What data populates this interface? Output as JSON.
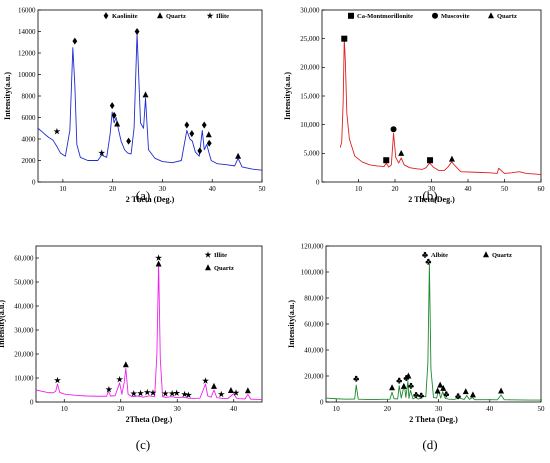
{
  "chart_data": [
    {
      "id": "a",
      "type": "line",
      "caption": "(a)",
      "xlabel": "2 Theta (Deg.)",
      "ylabel": "Intensity(a.u.)",
      "xlim": [
        5,
        50
      ],
      "ylim": [
        0,
        16000
      ],
      "xticks": [
        10,
        20,
        30,
        40,
        50
      ],
      "yticks": [
        0,
        2000,
        4000,
        6000,
        8000,
        10000,
        12000,
        14000,
        16000
      ],
      "ytick_labels": [
        "0",
        "2000",
        "4000",
        "6000",
        "8000",
        "10000",
        "12000",
        "14000",
        "16000"
      ],
      "line_color": "#1f2ccf",
      "legend": [
        {
          "symbol": "diamond",
          "label": "Kaolinite"
        },
        {
          "symbol": "triangle",
          "label": "Quartz"
        },
        {
          "symbol": "star",
          "label": "Illite"
        }
      ],
      "series": [
        {
          "x": [
            5,
            6,
            7,
            8,
            8.8,
            9.5,
            10.5,
            11.4,
            12,
            12.4,
            12.8,
            13.5,
            15,
            17,
            17.8,
            18.8,
            19.5,
            19.9,
            20.3,
            20.7,
            21.2,
            21.7,
            22.4,
            23,
            23.7,
            24.3,
            24.9,
            25.6,
            26.2,
            26.6,
            27.2,
            28.5,
            30,
            32,
            33.8,
            34.9,
            35.5,
            36,
            36.6,
            37.4,
            38,
            38.4,
            38.9,
            39.3,
            39.8,
            41,
            43,
            44.5,
            45.2,
            46,
            48,
            50
          ],
          "y": [
            5000,
            4600,
            4200,
            3900,
            3300,
            2700,
            2400,
            4800,
            12500,
            9000,
            3500,
            2300,
            2000,
            2000,
            2500,
            2300,
            4500,
            6500,
            5500,
            6000,
            4800,
            3800,
            3000,
            2700,
            2600,
            5000,
            13800,
            5500,
            5000,
            7800,
            3000,
            2200,
            1900,
            1800,
            2000,
            4800,
            4000,
            3800,
            2800,
            2400,
            4800,
            3000,
            3500,
            2800,
            2000,
            1700,
            1600,
            1500,
            2200,
            1400,
            1200,
            1100
          ]
        }
      ],
      "markers": [
        {
          "symbol": "star",
          "x": 8.8,
          "y": 4700
        },
        {
          "symbol": "diamond",
          "x": 12.4,
          "y": 13100
        },
        {
          "symbol": "star",
          "x": 17.8,
          "y": 2700
        },
        {
          "symbol": "diamond",
          "x": 19.9,
          "y": 7100
        },
        {
          "symbol": "diamond",
          "x": 20.3,
          "y": 6200
        },
        {
          "symbol": "triangle",
          "x": 20.9,
          "y": 5400
        },
        {
          "symbol": "diamond",
          "x": 23.2,
          "y": 3800
        },
        {
          "symbol": "diamond",
          "x": 24.9,
          "y": 14000
        },
        {
          "symbol": "triangle",
          "x": 26.6,
          "y": 8100
        },
        {
          "symbol": "diamond",
          "x": 34.9,
          "y": 5300
        },
        {
          "symbol": "diamond",
          "x": 35.9,
          "y": 4500
        },
        {
          "symbol": "diamond",
          "x": 37.5,
          "y": 2900
        },
        {
          "symbol": "diamond",
          "x": 38.4,
          "y": 5300
        },
        {
          "symbol": "triangle",
          "x": 39.3,
          "y": 4400
        },
        {
          "symbol": "diamond",
          "x": 39.4,
          "y": 3600
        },
        {
          "symbol": "triangle",
          "x": 45.2,
          "y": 2400
        }
      ]
    },
    {
      "id": "b",
      "type": "line",
      "caption": "(b)",
      "xlabel": "2 Theta(Deg.)",
      "ylabel": "Intensity(a.u.)",
      "xlim": [
        0,
        60
      ],
      "ylim": [
        0,
        30000
      ],
      "xticks": [
        10,
        20,
        30,
        40,
        50,
        60
      ],
      "yticks": [
        0,
        5000,
        10000,
        15000,
        20000,
        25000,
        30000
      ],
      "ytick_labels": [
        "0",
        "5,000",
        "10,000",
        "15,000",
        "20,000",
        "25,000",
        "30,000"
      ],
      "line_color": "#e02020",
      "legend": [
        {
          "symbol": "square",
          "label": "Ca-Montmorillonite"
        },
        {
          "symbol": "circle",
          "label": "Muscovite"
        },
        {
          "symbol": "triangle",
          "label": "Quartz"
        }
      ],
      "series": [
        {
          "x": [
            5,
            5.4,
            5.8,
            6.1,
            6.4,
            6.8,
            7.5,
            9,
            11,
            13,
            15,
            17,
            17.6,
            18.3,
            19,
            19.6,
            20.2,
            21,
            21.7,
            22.5,
            24,
            26,
            27.5,
            28.5,
            29.5,
            30.5,
            32,
            33.5,
            34.5,
            35.5,
            36.5,
            38,
            42,
            46,
            48,
            48.4,
            50,
            52,
            54,
            56,
            58,
            60
          ],
          "y": [
            6000,
            7000,
            14000,
            25000,
            21000,
            12000,
            7500,
            4500,
            3500,
            3000,
            2800,
            2700,
            3300,
            2600,
            3000,
            8500,
            4300,
            3300,
            4200,
            3000,
            2500,
            2300,
            2200,
            2500,
            3300,
            2600,
            2000,
            2000,
            2600,
            3500,
            2800,
            1800,
            1700,
            1600,
            1500,
            2400,
            1500,
            1600,
            1800,
            1500,
            1400,
            1300
          ]
        }
      ],
      "markers": [
        {
          "symbol": "square",
          "x": 6.1,
          "y": 25000
        },
        {
          "symbol": "square",
          "x": 17.6,
          "y": 3800
        },
        {
          "symbol": "circle",
          "x": 19.6,
          "y": 9200
        },
        {
          "symbol": "triangle",
          "x": 21.7,
          "y": 5000
        },
        {
          "symbol": "square",
          "x": 29.6,
          "y": 3800
        },
        {
          "symbol": "triangle",
          "x": 35.6,
          "y": 4000
        }
      ]
    },
    {
      "id": "c",
      "type": "line",
      "caption": "(c)",
      "xlabel": "2Theta (Deg.)",
      "ylabel": "Intensity(a.u.)",
      "xlim": [
        5,
        45
      ],
      "ylim": [
        0,
        65000
      ],
      "xticks": [
        10,
        20,
        30,
        40
      ],
      "yticks": [
        0,
        10000,
        20000,
        30000,
        40000,
        50000,
        60000
      ],
      "ytick_labels": [
        "0",
        "10,000",
        "20,000",
        "30,000",
        "40,000",
        "50,000",
        "60,000"
      ],
      "line_color": "#ee22ee",
      "legend": [
        {
          "symbol": "star",
          "label": "Illite"
        },
        {
          "symbol": "triangle",
          "label": "Quartz"
        }
      ],
      "series": [
        {
          "x": [
            5,
            6,
            7,
            8,
            8.5,
            8.8,
            9.2,
            10,
            12,
            14,
            16,
            17.5,
            17.8,
            18.2,
            19,
            19.8,
            20.2,
            20.6,
            20.9,
            21.3,
            22,
            23,
            24,
            25,
            26,
            26.4,
            26.7,
            27,
            27.4,
            28,
            29,
            30,
            31,
            32,
            33,
            34,
            34.6,
            35,
            35.4,
            36,
            36.5,
            37,
            38,
            39,
            40,
            40.5,
            41,
            42,
            42.5,
            43,
            44,
            45
          ],
          "y": [
            5000,
            4500,
            4000,
            3800,
            4500,
            7500,
            4000,
            3300,
            2800,
            2500,
            2400,
            2400,
            4500,
            2500,
            2600,
            8000,
            3200,
            8000,
            14000,
            3200,
            2200,
            2500,
            2000,
            2600,
            2200,
            20000,
            58000,
            18000,
            2200,
            1900,
            2200,
            1800,
            2000,
            1600,
            1500,
            1600,
            5000,
            7500,
            2500,
            2000,
            5000,
            1800,
            1500,
            1500,
            3500,
            1600,
            1400,
            1300,
            3200,
            1200,
            1100,
            1000
          ]
        }
      ],
      "markers": [
        {
          "symbol": "star",
          "x": 8.8,
          "y": 9000
        },
        {
          "symbol": "star",
          "x": 17.9,
          "y": 5200
        },
        {
          "symbol": "star",
          "x": 19.8,
          "y": 9400
        },
        {
          "symbol": "triangle",
          "x": 20.9,
          "y": 15500
        },
        {
          "symbol": "star",
          "x": 22.3,
          "y": 3500
        },
        {
          "symbol": "star",
          "x": 23.5,
          "y": 3600
        },
        {
          "symbol": "star",
          "x": 24.7,
          "y": 4000
        },
        {
          "symbol": "star",
          "x": 25.7,
          "y": 3800
        },
        {
          "symbol": "star",
          "x": 26.7,
          "y": 60000
        },
        {
          "symbol": "triangle",
          "x": 26.7,
          "y": 57500
        },
        {
          "symbol": "star",
          "x": 27.9,
          "y": 3500
        },
        {
          "symbol": "star",
          "x": 29.1,
          "y": 3500
        },
        {
          "symbol": "star",
          "x": 29.9,
          "y": 3700
        },
        {
          "symbol": "star",
          "x": 31.3,
          "y": 3200
        },
        {
          "symbol": "star",
          "x": 32.0,
          "y": 2900
        },
        {
          "symbol": "star",
          "x": 35.0,
          "y": 8800
        },
        {
          "symbol": "triangle",
          "x": 36.5,
          "y": 6500
        },
        {
          "symbol": "star",
          "x": 37.8,
          "y": 3200
        },
        {
          "symbol": "triangle",
          "x": 39.5,
          "y": 4800
        },
        {
          "symbol": "star",
          "x": 40.4,
          "y": 3800
        },
        {
          "symbol": "triangle",
          "x": 42.5,
          "y": 4700
        }
      ]
    },
    {
      "id": "d",
      "type": "line",
      "caption": "(d)",
      "xlabel": "2 Theta (Deg.)",
      "ylabel": "Intensity(a.u.)",
      "xlim": [
        8,
        50
      ],
      "ylim": [
        0,
        120000
      ],
      "xticks": [
        10,
        20,
        30,
        40,
        50
      ],
      "yticks": [
        0,
        20000,
        40000,
        60000,
        80000,
        100000,
        120000
      ],
      "ytick_labels": [
        "0",
        "20,000",
        "40,000",
        "60,000",
        "80,000",
        "100,000",
        "120,000"
      ],
      "line_color": "#1d8a2e",
      "legend": [
        {
          "symbol": "club",
          "label": "Albite"
        },
        {
          "symbol": "triangle",
          "label": "Quartz"
        }
      ],
      "series": [
        {
          "x": [
            8,
            10,
            12,
            13.6,
            13.9,
            14.3,
            16,
            18,
            20.5,
            20.9,
            21.3,
            22,
            22.3,
            22.7,
            23.3,
            23.6,
            24,
            24.2,
            24.5,
            25,
            25.5,
            26,
            26.5,
            27,
            27.5,
            27.9,
            28.2,
            28.5,
            29,
            29.6,
            30,
            30.4,
            30.8,
            31.3,
            32,
            33,
            34,
            35,
            35.5,
            36,
            36.6,
            37,
            38,
            40,
            41.5,
            42.2,
            42.8,
            44,
            46,
            48,
            50
          ],
          "y": [
            3000,
            2500,
            2200,
            2300,
            13000,
            2200,
            2000,
            2000,
            2200,
            7500,
            2500,
            2400,
            12500,
            3000,
            13500,
            3500,
            16000,
            2800,
            9000,
            2400,
            3500,
            2300,
            2800,
            4500,
            4000,
            30000,
            106000,
            25000,
            3500,
            3000,
            9000,
            3000,
            8000,
            2800,
            2200,
            2000,
            3000,
            2000,
            5000,
            2000,
            3500,
            1800,
            1800,
            1800,
            1700,
            5500,
            1800,
            1700,
            1600,
            1500,
            1500
          ]
        }
      ],
      "markers": [
        {
          "symbol": "club",
          "x": 13.9,
          "y": 18000
        },
        {
          "symbol": "triangle",
          "x": 20.9,
          "y": 11000
        },
        {
          "symbol": "club",
          "x": 22.3,
          "y": 16500
        },
        {
          "symbol": "triangle",
          "x": 23.2,
          "y": 12000
        },
        {
          "symbol": "club",
          "x": 23.7,
          "y": 18500
        },
        {
          "symbol": "triangle",
          "x": 24.1,
          "y": 20000
        },
        {
          "symbol": "club",
          "x": 24.6,
          "y": 12500
        },
        {
          "symbol": "club",
          "x": 25.6,
          "y": 5500
        },
        {
          "symbol": "club",
          "x": 26.6,
          "y": 5000
        },
        {
          "symbol": "club",
          "x": 28.0,
          "y": 108000
        },
        {
          "symbol": "triangle",
          "x": 29.8,
          "y": 8500
        },
        {
          "symbol": "triangle",
          "x": 30.3,
          "y": 13000
        },
        {
          "symbol": "triangle",
          "x": 30.9,
          "y": 10500
        },
        {
          "symbol": "club",
          "x": 31.5,
          "y": 6000
        },
        {
          "symbol": "club",
          "x": 33.8,
          "y": 4500
        },
        {
          "symbol": "triangle",
          "x": 35.3,
          "y": 8000
        },
        {
          "symbol": "triangle",
          "x": 36.7,
          "y": 5500
        },
        {
          "symbol": "triangle",
          "x": 42.2,
          "y": 8500
        }
      ]
    }
  ]
}
